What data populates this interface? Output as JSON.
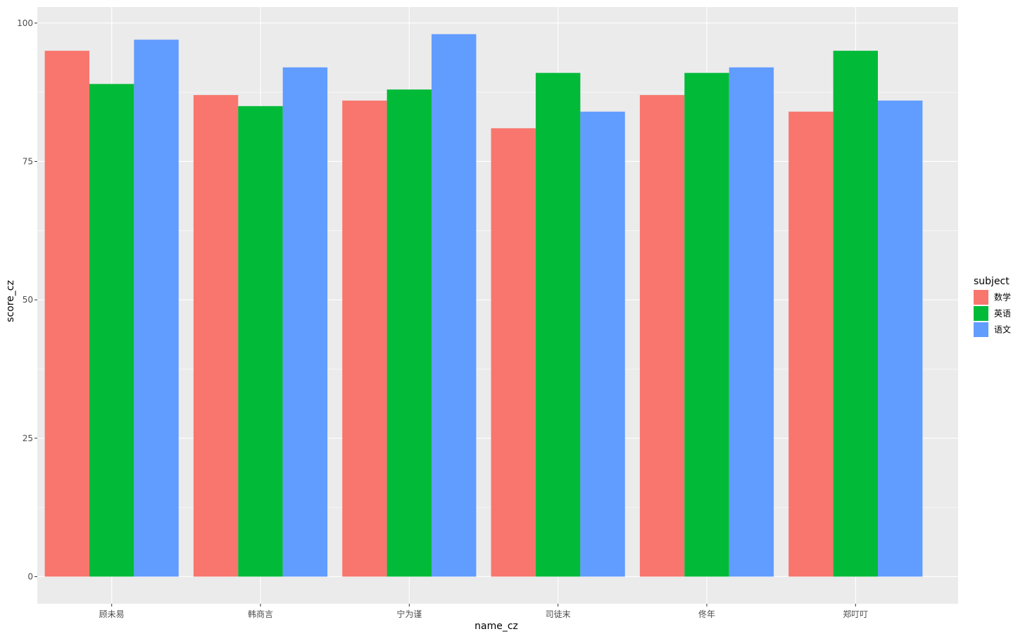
{
  "chart_data": {
    "type": "bar",
    "title": "",
    "xlabel": "name_cz",
    "ylabel": "score_cz",
    "categories": [
      "顾未易",
      "韩商言",
      "宁为谨",
      "司徒末",
      "佟年",
      "郑叮叮"
    ],
    "series": [
      {
        "name": "数学",
        "color": "#F8766D",
        "values": [
          95,
          87,
          86,
          81,
          87,
          84
        ]
      },
      {
        "name": "英语",
        "color": "#00BA38",
        "values": [
          89,
          85,
          88,
          91,
          91,
          95
        ]
      },
      {
        "name": "语文",
        "color": "#619CFF",
        "values": [
          97,
          92,
          98,
          84,
          92,
          86
        ]
      }
    ],
    "ylim": [
      -4.9,
      102.9
    ],
    "yticks": [
      0,
      25,
      50,
      75,
      100
    ],
    "grid": true,
    "legend": {
      "title": "subject",
      "position": "right"
    },
    "style": {
      "panel_background": "#EBEBEB",
      "grid_color": "#FFFFFF",
      "tick_color": "#333333"
    }
  }
}
